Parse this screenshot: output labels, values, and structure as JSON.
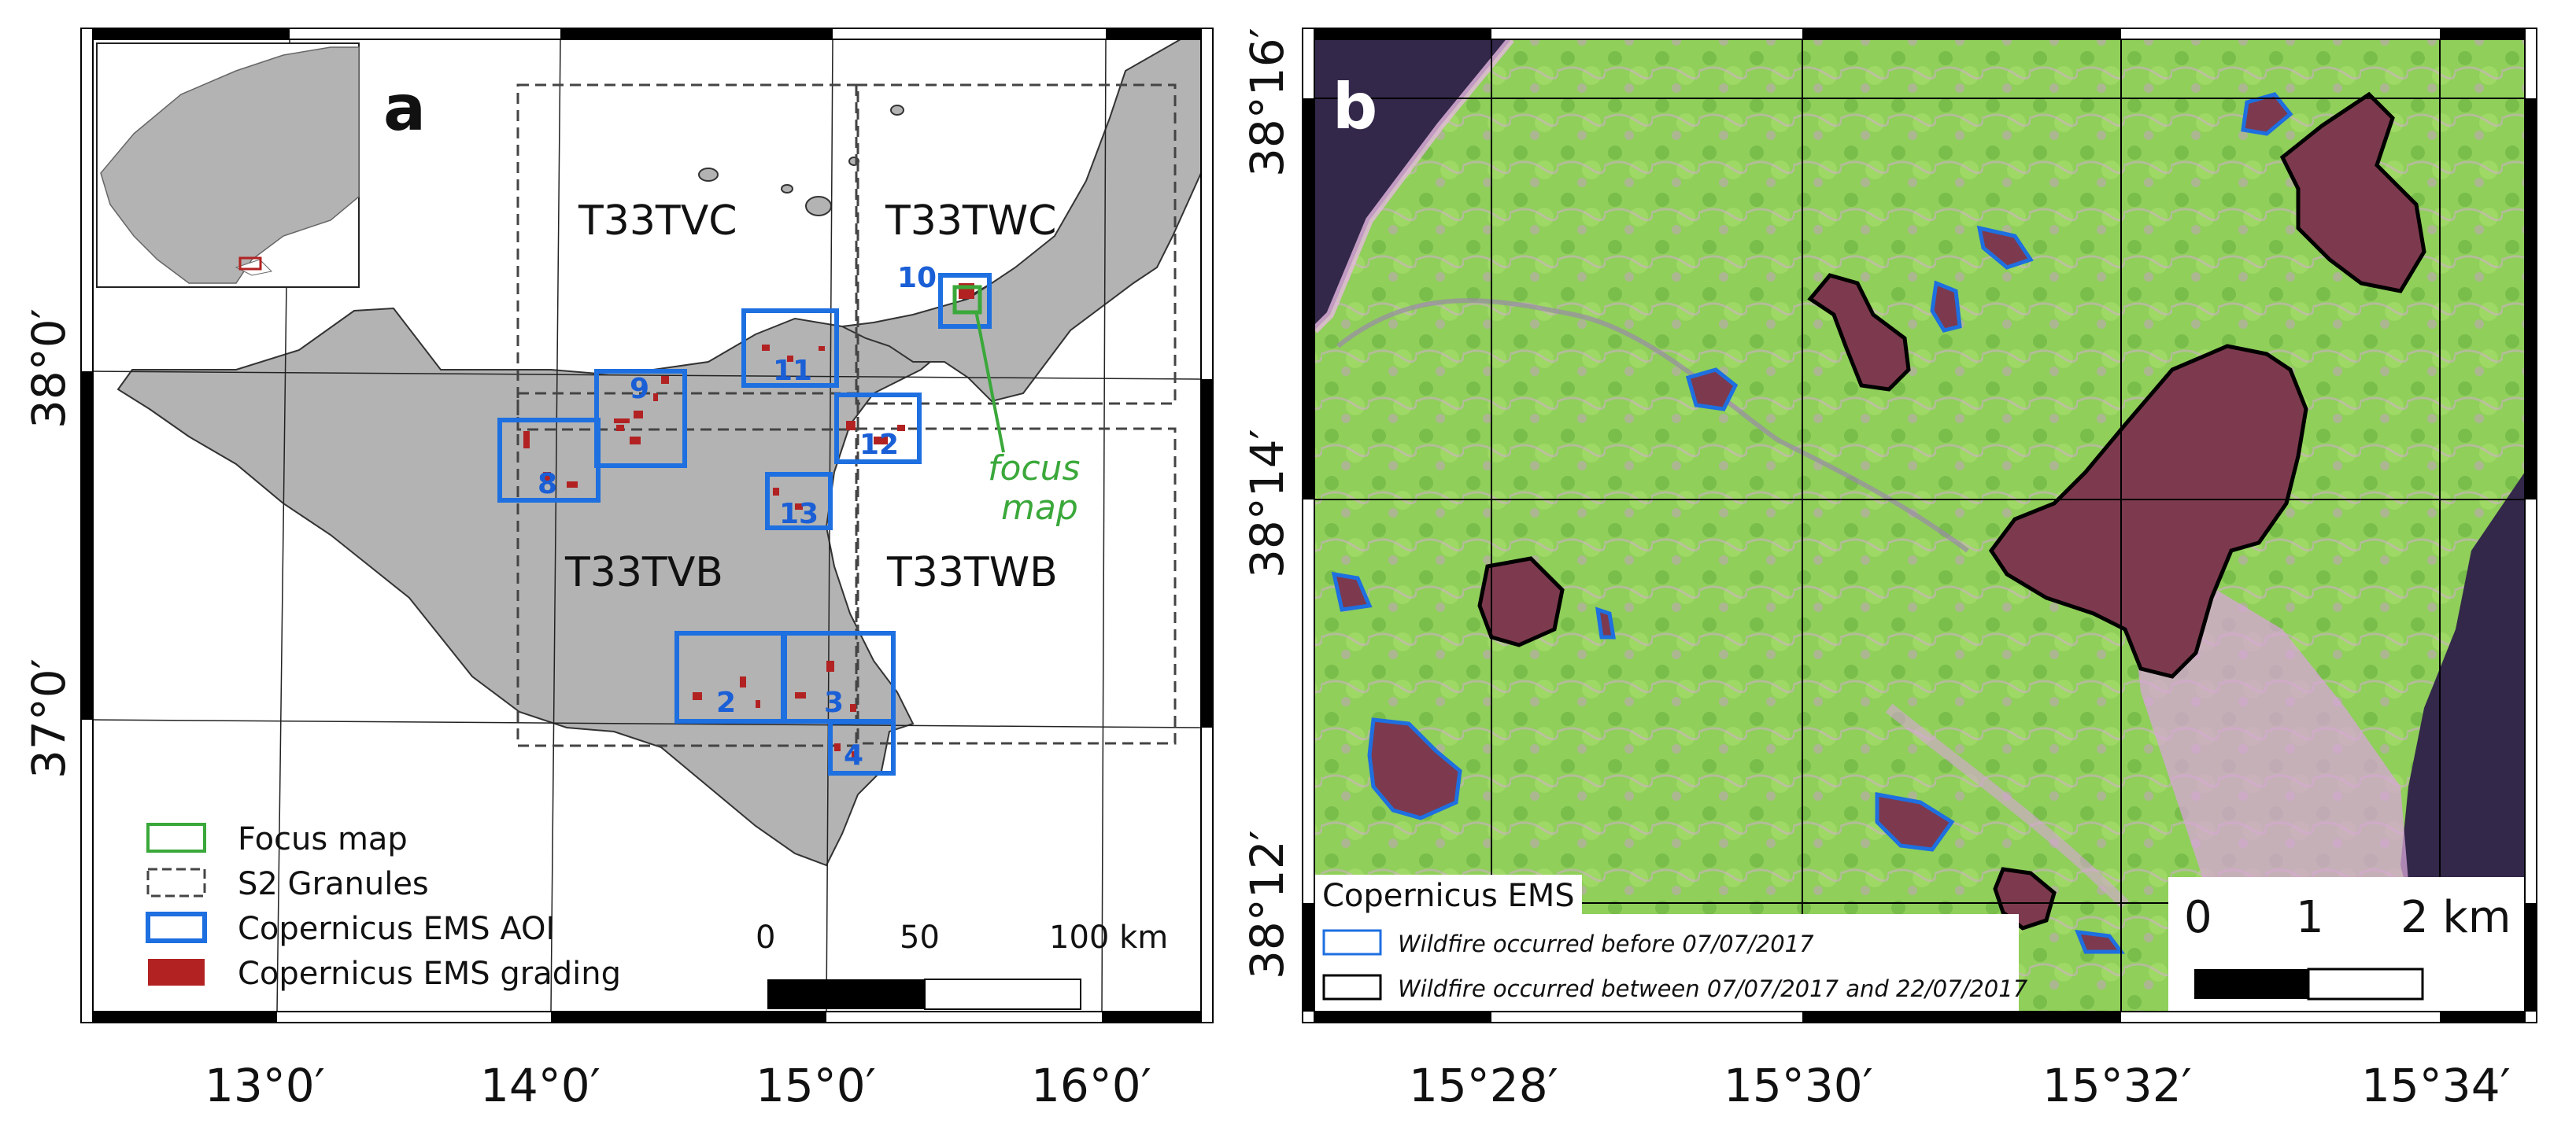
{
  "panel_a": {
    "letter": "a",
    "granules": [
      "T33TVC",
      "T33TWC",
      "T33TVB",
      "T33TWB"
    ],
    "aoi_numbers": [
      "2",
      "3",
      "4",
      "8",
      "9",
      "10",
      "11",
      "12",
      "13"
    ],
    "focus_label_line1": "focus",
    "focus_label_line2": "map",
    "legend": {
      "focus_map": "Focus map",
      "s2_granules": "S2 Granules",
      "ems_aoi": "Copernicus EMS AOI",
      "ems_grading": "Copernicus EMS grading"
    },
    "scalebar": {
      "t0": "0",
      "t1": "50",
      "t2": "100 km"
    },
    "lon_ticks": [
      "13°0′",
      "14°0′",
      "15°0′",
      "16°0′"
    ],
    "lat_ticks": [
      "38°0′",
      "37°0′"
    ]
  },
  "panel_b": {
    "letter": "b",
    "legend": {
      "title": "Copernicus EMS",
      "before": "Wildfire occurred before 07/07/2017",
      "between": "Wildfire occurred between 07/07/2017 and 22/07/2017"
    },
    "scalebar": {
      "t0": "0",
      "t1": "1",
      "t2": "2 km"
    },
    "lon_ticks": [
      "15°28′",
      "15°30′",
      "15°32′",
      "15°34′"
    ],
    "lat_ticks": [
      "38°16′",
      "38°14′",
      "38°12′"
    ]
  },
  "colors": {
    "land": "#b3b3b3",
    "aoi_blue": "#1e6fe0",
    "focus_green": "#3aa83a",
    "burn_red": "#b22222",
    "veg_green": "#8fd05a",
    "sea_dark": "#33284a",
    "burn_scar": "#7d3a4e"
  }
}
